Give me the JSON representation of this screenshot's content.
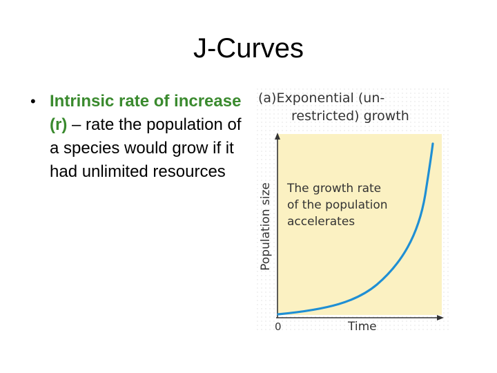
{
  "slide": {
    "title": "J-Curves",
    "bullet": {
      "marker": "•",
      "term": "Intrinsic rate of increase (r)",
      "definition": " – rate the population of a species would grow if it had unlimited resources"
    }
  },
  "figure": {
    "panel_label": "(a)",
    "heading_line1": "Exponential (un-",
    "heading_line2": "restricted) growth",
    "annotation_line1": "The growth rate",
    "annotation_line2": "of the population",
    "annotation_line3": "accelerates",
    "ylabel": "Population size",
    "xlabel": "Time",
    "origin_label": "0",
    "colors": {
      "plot_background": "#fbf1c2",
      "curve": "#1f8fd4",
      "title_green": "#3a8a2e"
    }
  }
}
